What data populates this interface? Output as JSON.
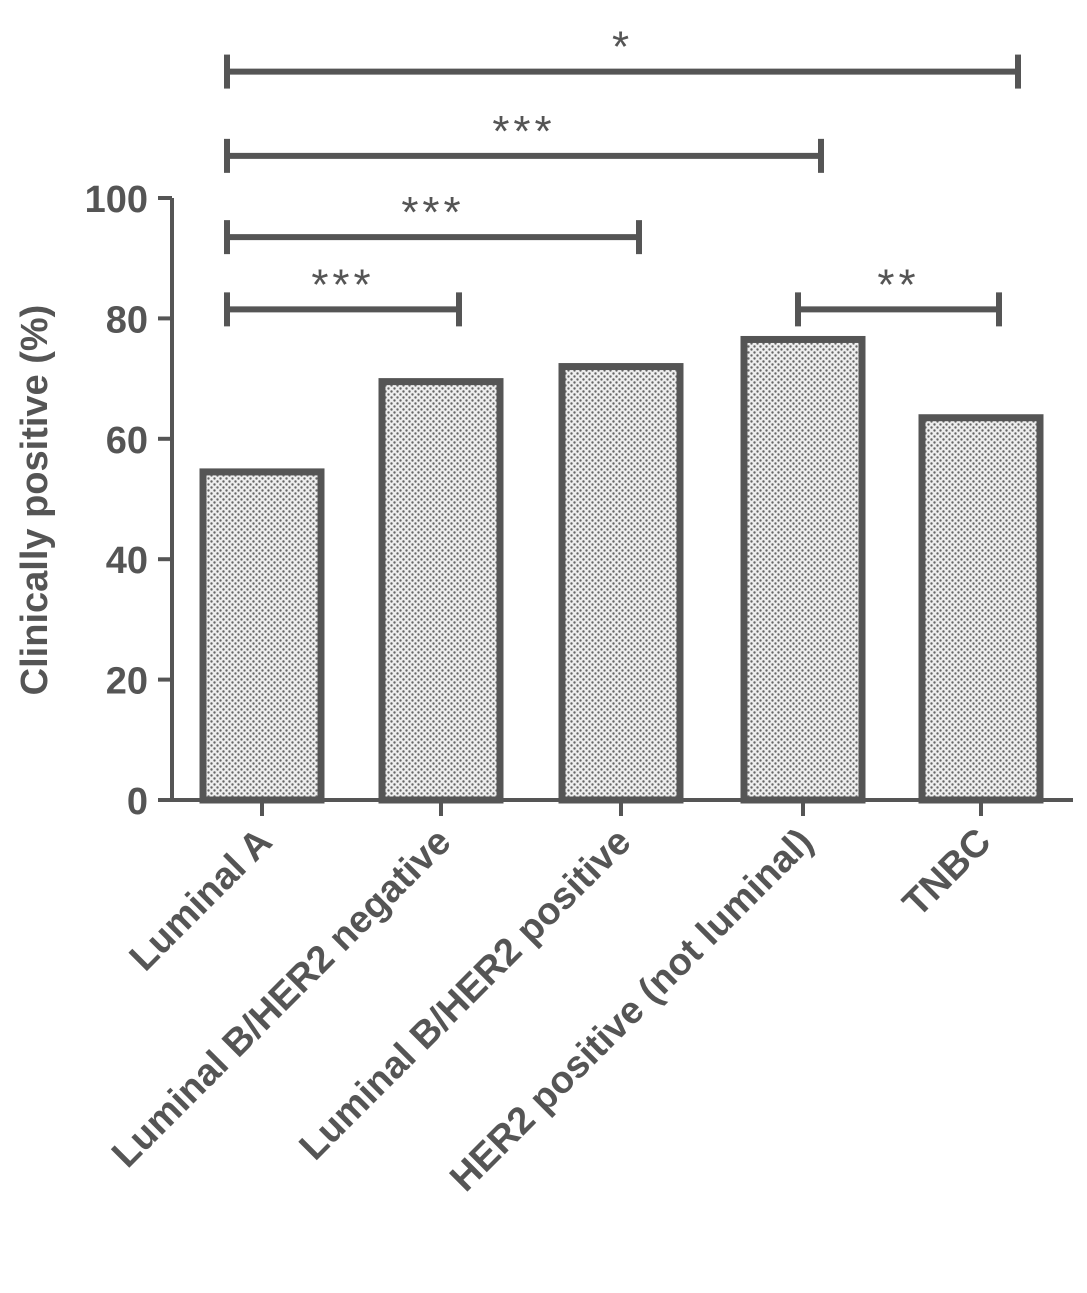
{
  "chart_data": {
    "type": "bar",
    "title": "",
    "xlabel": "",
    "ylabel": "Clinically positive (%)",
    "ylim": [
      0,
      100
    ],
    "yticks": [
      0,
      20,
      40,
      60,
      80,
      100
    ],
    "grid": false,
    "legend": "none",
    "categories": [
      "Luminal A",
      "Luminal B/HER2 negative",
      "Luminal B/HER2 positive",
      "HER2 positive (not luminal)",
      "TNBC"
    ],
    "values": [
      54.5,
      69.5,
      72,
      76.5,
      63.5
    ],
    "bar_style": {
      "fill": "#d9d9d9",
      "stroke": "#555555",
      "pattern": "dotted"
    },
    "significance": [
      {
        "from": 0,
        "to": 4,
        "y": 121,
        "label": "*"
      },
      {
        "from": 0,
        "to": 3,
        "y": 107,
        "label": "***"
      },
      {
        "from": 0,
        "to": 2,
        "y": 93.5,
        "label": "***"
      },
      {
        "from": 0,
        "to": 1,
        "y": 81.5,
        "label": "***"
      },
      {
        "from": 3,
        "to": 4,
        "y": 81.5,
        "label": "**"
      }
    ]
  },
  "colors": {
    "axis": "#555555",
    "text": "#555555"
  }
}
